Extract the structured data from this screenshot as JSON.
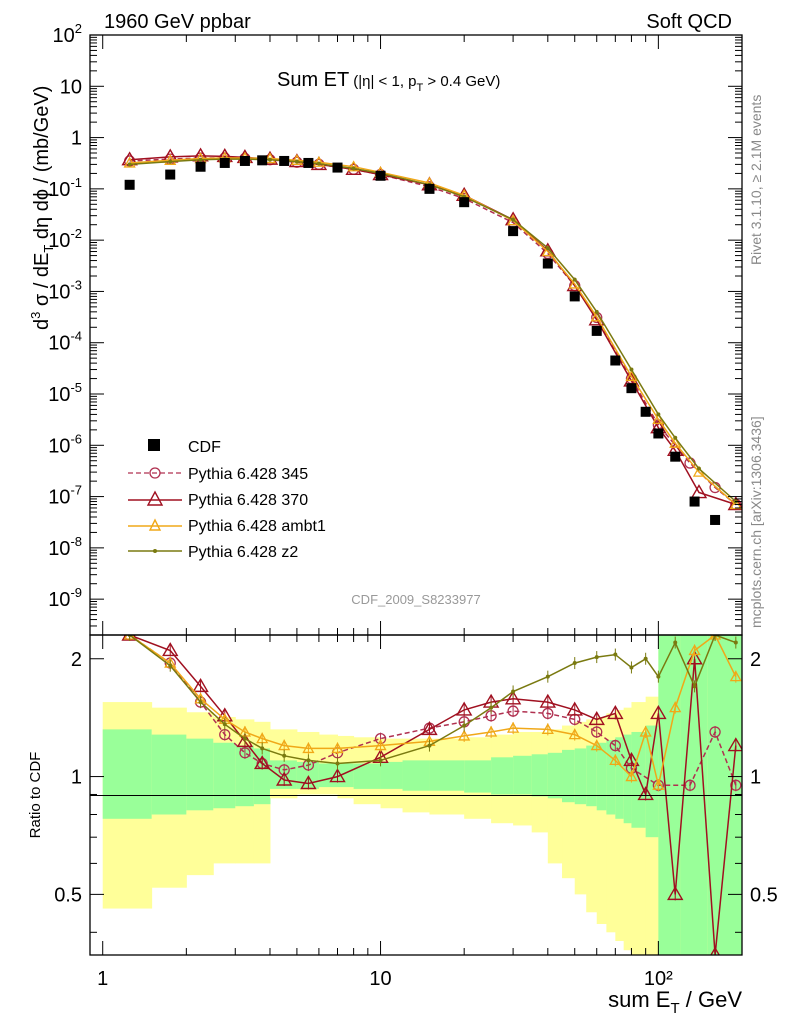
{
  "header": {
    "left": "1960 GeV ppbar",
    "right": "Soft QCD"
  },
  "side_labels": {
    "rivet": "Rivet 3.1.10, ≥ 2.1M events",
    "mcplots": "mcplots.cern.ch [arXiv:1306.3436]"
  },
  "chart_data": {
    "type": "line",
    "title": "Sum ET",
    "title_sub": "(|η| < 1, p",
    "title_sub_T": "T",
    "title_sub_end": " > 0.4 GeV)",
    "analysis_label": "CDF_2009_S8233977",
    "xlabel": "sum E",
    "xlabel_sub": "T",
    "xlabel_unit": " / GeV",
    "ylabel_top": "d³ σ / dE_T dη dφ / (mb/GeV)",
    "ylabel_bottom": "Ratio to CDF",
    "x_log": true,
    "xlim": [
      0.9,
      200
    ],
    "ylim_top": [
      2e-10,
      100
    ],
    "y_log_top": true,
    "ylim_ratio": [
      0.35,
      2.3
    ],
    "y_log_ratio": true,
    "x_ticks": [
      1,
      10,
      100
    ],
    "x_tick_labels": [
      "1",
      "10",
      "10²"
    ],
    "y_ticks_top": [
      {
        "v": 100,
        "m": "10",
        "e": "2"
      },
      {
        "v": 10,
        "m": "10",
        "e": ""
      },
      {
        "v": 1,
        "m": "1",
        "e": ""
      },
      {
        "v": 0.1,
        "m": "10",
        "e": "-1"
      },
      {
        "v": 0.01,
        "m": "10",
        "e": "-2"
      },
      {
        "v": 0.001,
        "m": "10",
        "e": "-3"
      },
      {
        "v": 0.0001,
        "m": "10",
        "e": "-4"
      },
      {
        "v": 1e-05,
        "m": "10",
        "e": "-5"
      },
      {
        "v": 1e-06,
        "m": "10",
        "e": "-6"
      },
      {
        "v": 1e-07,
        "m": "10",
        "e": "-7"
      },
      {
        "v": 1e-08,
        "m": "10",
        "e": "-8"
      },
      {
        "v": 1e-09,
        "m": "10",
        "e": "-9"
      }
    ],
    "y_ticks_ratio": [
      {
        "v": 0.5,
        "label": "0.5"
      },
      {
        "v": 1,
        "label": "1"
      },
      {
        "v": 2,
        "label": "2"
      }
    ],
    "legend_position": "bottom-left",
    "data": {
      "name": "CDF",
      "x": [
        1.25,
        1.75,
        2.25,
        2.75,
        3.25,
        3.75,
        4.5,
        5.5,
        7,
        10,
        15,
        20,
        30,
        40,
        50,
        60,
        70,
        80,
        90,
        100,
        115,
        135,
        160
      ],
      "y": [
        0.12,
        0.19,
        0.27,
        0.32,
        0.35,
        0.36,
        0.35,
        0.32,
        0.26,
        0.18,
        0.1,
        0.055,
        0.015,
        0.0035,
        0.0008,
        0.00017,
        4.5e-05,
        1.3e-05,
        4.5e-06,
        1.7e-06,
        6e-07,
        8e-08,
        3.5e-08
      ]
    },
    "series": [
      {
        "name": "Pythia 6.428 345",
        "color": "#b03050",
        "style": "dashed",
        "marker": "circle",
        "x": [
          1.25,
          1.75,
          2.25,
          2.75,
          3.25,
          4,
          5,
          6,
          8,
          10,
          15,
          20,
          30,
          40,
          50,
          60,
          80,
          100,
          130,
          160,
          190
        ],
        "y": [
          0.35,
          0.38,
          0.4,
          0.4,
          0.39,
          0.37,
          0.33,
          0.3,
          0.24,
          0.19,
          0.11,
          0.065,
          0.022,
          0.0055,
          0.0013,
          0.00031,
          2e-05,
          2.5e-06,
          4.5e-07,
          1.5e-07,
          7e-08
        ]
      },
      {
        "name": "Pythia 6.428 370",
        "color": "#a01020",
        "style": "solid",
        "marker": "triangle",
        "x": [
          1.25,
          1.75,
          2.25,
          2.75,
          3.25,
          4,
          5,
          6,
          8,
          10,
          15,
          20,
          30,
          40,
          50,
          60,
          80,
          100,
          115,
          140,
          190
        ],
        "y": [
          0.37,
          0.42,
          0.44,
          0.43,
          0.41,
          0.38,
          0.34,
          0.3,
          0.24,
          0.19,
          0.12,
          0.075,
          0.025,
          0.0062,
          0.0013,
          0.00028,
          1.8e-05,
          2.2e-06,
          8e-07,
          1.2e-07,
          7e-08
        ]
      },
      {
        "name": "Pythia 6.428 ambt1",
        "color": "#f0a818",
        "style": "solid",
        "marker": "triangle-small",
        "x": [
          1.25,
          1.75,
          2.25,
          2.75,
          3.25,
          4,
          5,
          6,
          8,
          10,
          15,
          20,
          30,
          40,
          50,
          60,
          80,
          100,
          115,
          140,
          190
        ],
        "y": [
          0.32,
          0.36,
          0.39,
          0.4,
          0.4,
          0.39,
          0.36,
          0.33,
          0.27,
          0.21,
          0.13,
          0.075,
          0.024,
          0.006,
          0.0014,
          0.00032,
          2.2e-05,
          3.2e-06,
          1.1e-06,
          3e-07,
          7e-08
        ]
      },
      {
        "name": "Pythia 6.428 z2",
        "color": "#7a7a10",
        "style": "solid",
        "marker": "dot",
        "x": [
          1.25,
          1.75,
          2.25,
          2.75,
          3.25,
          4,
          5,
          6,
          8,
          10,
          15,
          20,
          30,
          40,
          50,
          60,
          80,
          100,
          115,
          140,
          190
        ],
        "y": [
          0.3,
          0.34,
          0.37,
          0.38,
          0.38,
          0.37,
          0.34,
          0.31,
          0.25,
          0.2,
          0.12,
          0.07,
          0.025,
          0.007,
          0.0017,
          0.0004,
          3e-05,
          4e-06,
          1.4e-06,
          3.5e-07,
          8e-08
        ]
      }
    ],
    "ratio_series": [
      {
        "name": "Pythia 6.428 345",
        "x": [
          1.25,
          1.75,
          2.25,
          2.75,
          3.25,
          3.75,
          4.5,
          5.5,
          7,
          10,
          15,
          20,
          25,
          30,
          40,
          50,
          60,
          70,
          80,
          100,
          130,
          160,
          190
        ],
        "y": [
          2.5,
          1.95,
          1.55,
          1.28,
          1.15,
          1.08,
          1.04,
          1.07,
          1.15,
          1.25,
          1.33,
          1.38,
          1.43,
          1.47,
          1.45,
          1.4,
          1.3,
          1.2,
          1.05,
          0.95,
          0.95,
          1.3,
          0.95
        ]
      },
      {
        "name": "Pythia 6.428 370",
        "x": [
          1.25,
          1.75,
          2.25,
          2.75,
          3.25,
          3.75,
          4.5,
          5.5,
          7,
          10,
          15,
          20,
          25,
          30,
          40,
          50,
          60,
          70,
          80,
          90,
          100,
          115,
          135,
          160,
          190
        ],
        "y": [
          2.7,
          2.1,
          1.7,
          1.43,
          1.23,
          1.08,
          0.98,
          0.96,
          1.0,
          1.12,
          1.32,
          1.48,
          1.55,
          1.58,
          1.55,
          1.48,
          1.4,
          1.45,
          1.1,
          0.9,
          1.45,
          0.5,
          2.0,
          0.3,
          1.2
        ]
      },
      {
        "name": "Pythia 6.428 ambt1",
        "x": [
          1.25,
          1.75,
          2.25,
          2.75,
          3.25,
          3.75,
          4.5,
          5.5,
          7,
          10,
          15,
          20,
          25,
          30,
          40,
          50,
          60,
          70,
          80,
          90,
          100,
          115,
          135,
          160,
          190
        ],
        "y": [
          2.6,
          1.95,
          1.58,
          1.4,
          1.3,
          1.25,
          1.2,
          1.18,
          1.18,
          1.2,
          1.23,
          1.27,
          1.3,
          1.33,
          1.32,
          1.28,
          1.2,
          1.1,
          1.0,
          1.3,
          0.95,
          1.5,
          2.1,
          2.4,
          1.8
        ]
      },
      {
        "name": "Pythia 6.428 z2",
        "x": [
          1.25,
          1.75,
          2.25,
          2.75,
          3.25,
          3.75,
          4.5,
          5.5,
          7,
          10,
          15,
          20,
          25,
          30,
          40,
          50,
          60,
          70,
          80,
          90,
          100,
          115,
          135,
          160,
          190
        ],
        "y": [
          2.55,
          1.92,
          1.55,
          1.36,
          1.25,
          1.18,
          1.13,
          1.1,
          1.08,
          1.1,
          1.2,
          1.35,
          1.5,
          1.65,
          1.8,
          1.95,
          2.02,
          2.05,
          1.9,
          2.0,
          1.8,
          2.2,
          1.7,
          2.3,
          2.2
        ]
      }
    ],
    "ratio_bands": {
      "edges": [
        1,
        1.5,
        2,
        2.5,
        3,
        3.5,
        4,
        5,
        6,
        7,
        8,
        10,
        12,
        15,
        20,
        25,
        30,
        35,
        40,
        45,
        50,
        55,
        60,
        65,
        70,
        75,
        80,
        90,
        100,
        120,
        150,
        200
      ],
      "yellow_low": [
        0.46,
        0.52,
        0.56,
        0.6,
        0.6,
        0.6,
        0.88,
        0.9,
        0.9,
        0.88,
        0.85,
        0.83,
        0.81,
        0.8,
        0.78,
        0.76,
        0.75,
        0.72,
        0.6,
        0.55,
        0.5,
        0.45,
        0.42,
        0.4,
        0.38,
        0.36,
        0.35,
        0.35,
        0.35,
        0.35,
        0.35
      ],
      "yellow_high": [
        1.55,
        1.5,
        1.46,
        1.42,
        1.4,
        1.38,
        1.32,
        1.3,
        1.28,
        1.27,
        1.26,
        1.25,
        1.25,
        1.25,
        1.26,
        1.28,
        1.3,
        1.3,
        1.32,
        1.35,
        1.38,
        1.4,
        1.42,
        1.45,
        1.48,
        1.5,
        1.55,
        1.6,
        2.3,
        2.3,
        2.3
      ],
      "green_low": [
        0.78,
        0.8,
        0.82,
        0.83,
        0.84,
        0.85,
        0.93,
        0.93,
        0.94,
        0.94,
        0.93,
        0.93,
        0.92,
        0.92,
        0.91,
        0.9,
        0.9,
        0.89,
        0.88,
        0.86,
        0.85,
        0.84,
        0.82,
        0.8,
        0.78,
        0.76,
        0.74,
        0.7,
        0.35,
        0.35,
        0.35
      ],
      "green_high": [
        1.32,
        1.28,
        1.25,
        1.22,
        1.2,
        1.18,
        1.1,
        1.09,
        1.08,
        1.08,
        1.08,
        1.09,
        1.1,
        1.1,
        1.1,
        1.12,
        1.13,
        1.14,
        1.15,
        1.17,
        1.18,
        1.2,
        1.22,
        1.24,
        1.26,
        1.28,
        1.3,
        1.35,
        2.3,
        2.3,
        2.3
      ]
    }
  }
}
